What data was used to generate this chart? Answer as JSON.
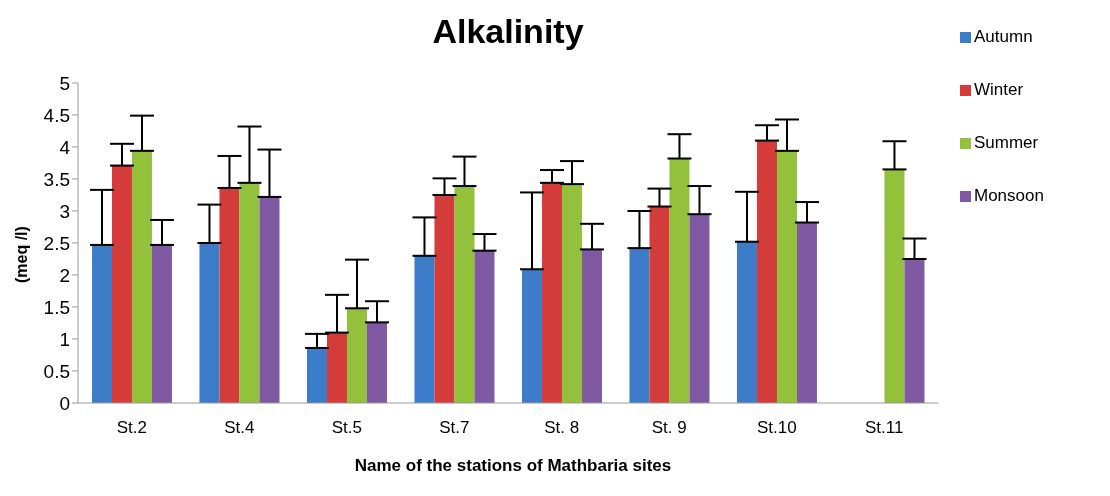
{
  "chart_data": {
    "type": "bar",
    "title": "Alkalinity",
    "xlabel": "Name of the stations of Mathbaria sites",
    "ylabel": "(meq /l)",
    "categories": [
      "St.2",
      "St.4",
      "St.5",
      "St.7",
      "St. 8",
      "St. 9",
      "St.10",
      "St.11"
    ],
    "series": [
      {
        "name": "Autumn",
        "color": "#3d7cc9",
        "values": [
          2.47,
          2.5,
          0.86,
          2.3,
          2.09,
          2.42,
          2.52,
          null
        ],
        "errors": [
          [
            2.47,
            3.33
          ],
          [
            2.5,
            3.1
          ],
          [
            0.86,
            1.08
          ],
          [
            2.3,
            2.9
          ],
          [
            2.09,
            3.29
          ],
          [
            2.42,
            3.0
          ],
          [
            2.52,
            3.3
          ],
          null
        ]
      },
      {
        "name": "Winter",
        "color": "#d33c3a",
        "values": [
          3.71,
          3.36,
          1.1,
          3.25,
          3.44,
          3.07,
          4.1,
          null
        ],
        "errors": [
          [
            3.71,
            4.05
          ],
          [
            3.36,
            3.86
          ],
          [
            1.1,
            1.69
          ],
          [
            3.25,
            3.51
          ],
          [
            3.44,
            3.64
          ],
          [
            3.07,
            3.35
          ],
          [
            4.1,
            4.34
          ],
          null
        ]
      },
      {
        "name": "Summer",
        "color": "#94c13c",
        "values": [
          3.94,
          3.44,
          1.48,
          3.39,
          3.42,
          3.82,
          3.94,
          3.65
        ],
        "errors": [
          [
            3.94,
            4.49
          ],
          [
            3.44,
            4.32
          ],
          [
            1.48,
            2.24
          ],
          [
            3.39,
            3.85
          ],
          [
            3.42,
            3.78
          ],
          [
            3.82,
            4.2
          ],
          [
            3.94,
            4.43
          ],
          [
            3.65,
            4.09
          ]
        ]
      },
      {
        "name": "Monsoon",
        "color": "#7f5aa2",
        "values": [
          2.47,
          3.22,
          1.26,
          2.38,
          2.4,
          2.95,
          2.82,
          2.25
        ],
        "errors": [
          [
            2.47,
            2.86
          ],
          [
            3.22,
            3.96
          ],
          [
            1.26,
            1.59
          ],
          [
            2.38,
            2.64
          ],
          [
            2.4,
            2.8
          ],
          [
            2.95,
            3.39
          ],
          [
            2.82,
            3.14
          ],
          [
            2.25,
            2.57
          ]
        ]
      }
    ],
    "ylim": [
      0,
      5
    ],
    "yticks": [
      0,
      0.5,
      1,
      1.5,
      2,
      2.5,
      3,
      3.5,
      4,
      4.5,
      5
    ],
    "grid": false,
    "legend": "top right"
  }
}
